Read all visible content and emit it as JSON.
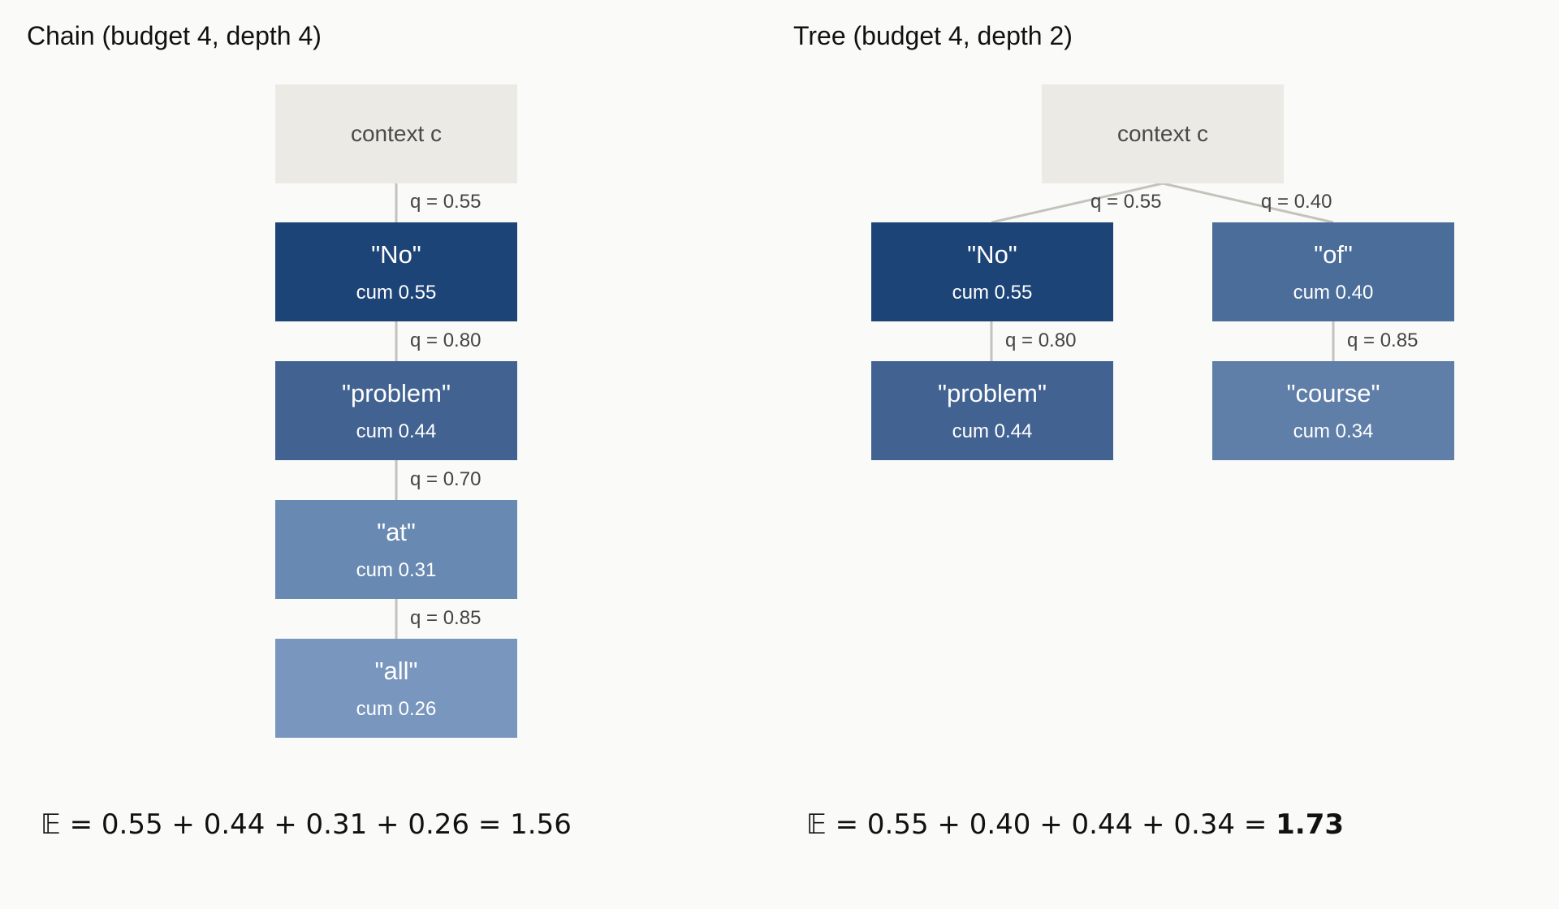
{
  "colors": {
    "background": "#fafaf8",
    "context_box": "#ebeae5",
    "edge": "#c4c3bb",
    "node_shades": [
      "#1d4477",
      "#426391",
      "#4a6d9a",
      "#5f7ea8",
      "#6889b2",
      "#7896be"
    ]
  },
  "chain": {
    "title": "Chain (budget 4, depth 4)",
    "context_label": "context  c",
    "nodes": [
      {
        "token": "\"No\"",
        "cum": "cum 0.55",
        "q": "q = 0.55"
      },
      {
        "token": "\"problem\"",
        "cum": "cum 0.44",
        "q": "q = 0.80"
      },
      {
        "token": "\"at\"",
        "cum": "cum 0.31",
        "q": "q = 0.70"
      },
      {
        "token": "\"all\"",
        "cum": "cum 0.26",
        "q": "q = 0.85"
      }
    ],
    "formula": "𝔼 = 0.55 + 0.44 + 0.31 + 0.26 = 1.56"
  },
  "tree": {
    "title": "Tree (budget 4, depth 2)",
    "context_label": "context  c",
    "nodes": [
      {
        "token": "\"No\"",
        "cum": "cum 0.55",
        "q": "q = 0.55"
      },
      {
        "token": "\"of\"",
        "cum": "cum 0.40",
        "q": "q = 0.40"
      },
      {
        "token": "\"problem\"",
        "cum": "cum 0.44",
        "q": "q = 0.80"
      },
      {
        "token": "\"course\"",
        "cum": "cum 0.34",
        "q": "q = 0.85"
      }
    ],
    "formula_prefix": "𝔼 = 0.55 + 0.40 + 0.44 + 0.34 = ",
    "formula_result": "1.73"
  }
}
